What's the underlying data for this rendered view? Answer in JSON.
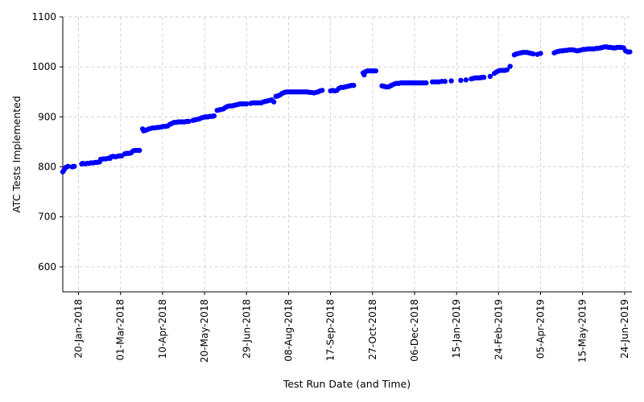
{
  "chart_data": {
    "type": "scatter",
    "xlabel": "Test Run Date (and Time)",
    "ylabel": "ATC Tests Implemented",
    "xlim": [
      "2018-01-05",
      "2019-07-01"
    ],
    "ylim": [
      550,
      1100
    ],
    "y_ticks": [
      600,
      700,
      800,
      900,
      1000,
      1100
    ],
    "x_ticks": [
      "20-Jan-2018",
      "01-Mar-2018",
      "10-Apr-2018",
      "20-May-2018",
      "29-Jun-2018",
      "08-Aug-2018",
      "17-Sep-2018",
      "27-Oct-2018",
      "06-Dec-2018",
      "15-Jan-2019",
      "24-Feb-2019",
      "05-Apr-2019",
      "15-May-2019",
      "24-Jun-2019"
    ],
    "grid": true,
    "marker_color": "#0000ff",
    "series": [
      {
        "points": [
          [
            "2018-01-05",
            790
          ],
          [
            "2018-01-06",
            793
          ],
          [
            "2018-01-07",
            797
          ],
          [
            "2018-01-08",
            799
          ],
          [
            "2018-01-09",
            800
          ],
          [
            "2018-01-10",
            801
          ],
          [
            "2018-01-14",
            800
          ],
          [
            "2018-01-15",
            801
          ],
          [
            "2018-01-16",
            801
          ],
          [
            "2018-01-23",
            806
          ],
          [
            "2018-01-24",
            807
          ],
          [
            "2018-01-26",
            806
          ],
          [
            "2018-01-28",
            807
          ],
          [
            "2018-01-30",
            807
          ],
          [
            "2018-02-01",
            808
          ],
          [
            "2018-02-03",
            808
          ],
          [
            "2018-02-05",
            809
          ],
          [
            "2018-02-07",
            809
          ],
          [
            "2018-02-09",
            810
          ],
          [
            "2018-02-10",
            815
          ],
          [
            "2018-02-11",
            815
          ],
          [
            "2018-02-13",
            816
          ],
          [
            "2018-02-15",
            816
          ],
          [
            "2018-02-17",
            817
          ],
          [
            "2018-02-19",
            817
          ],
          [
            "2018-02-20",
            820
          ],
          [
            "2018-02-22",
            821
          ],
          [
            "2018-02-24",
            820
          ],
          [
            "2018-02-26",
            821
          ],
          [
            "2018-02-28",
            822
          ],
          [
            "2018-03-02",
            822
          ],
          [
            "2018-03-05",
            826
          ],
          [
            "2018-03-07",
            827
          ],
          [
            "2018-03-09",
            827
          ],
          [
            "2018-03-11",
            828
          ],
          [
            "2018-03-13",
            832
          ],
          [
            "2018-03-15",
            833
          ],
          [
            "2018-03-17",
            833
          ],
          [
            "2018-03-19",
            833
          ],
          [
            "2018-03-22",
            876
          ],
          [
            "2018-03-23",
            872
          ],
          [
            "2018-03-24",
            873
          ],
          [
            "2018-03-26",
            874
          ],
          [
            "2018-03-28",
            876
          ],
          [
            "2018-03-30",
            877
          ],
          [
            "2018-04-01",
            878
          ],
          [
            "2018-04-03",
            878
          ],
          [
            "2018-04-05",
            879
          ],
          [
            "2018-04-07",
            879
          ],
          [
            "2018-04-09",
            880
          ],
          [
            "2018-04-11",
            881
          ],
          [
            "2018-04-13",
            881
          ],
          [
            "2018-04-15",
            882
          ],
          [
            "2018-04-17",
            885
          ],
          [
            "2018-04-19",
            887
          ],
          [
            "2018-04-21",
            889
          ],
          [
            "2018-04-23",
            889
          ],
          [
            "2018-04-25",
            890
          ],
          [
            "2018-04-27",
            890
          ],
          [
            "2018-04-29",
            890
          ],
          [
            "2018-05-01",
            890
          ],
          [
            "2018-05-03",
            891
          ],
          [
            "2018-05-05",
            891
          ],
          [
            "2018-05-09",
            893
          ],
          [
            "2018-05-11",
            894
          ],
          [
            "2018-05-13",
            895
          ],
          [
            "2018-05-15",
            896
          ],
          [
            "2018-05-17",
            898
          ],
          [
            "2018-05-19",
            899
          ],
          [
            "2018-05-21",
            900
          ],
          [
            "2018-05-23",
            900
          ],
          [
            "2018-05-25",
            901
          ],
          [
            "2018-05-27",
            901
          ],
          [
            "2018-05-29",
            902
          ],
          [
            "2018-06-01",
            913
          ],
          [
            "2018-06-03",
            914
          ],
          [
            "2018-06-05",
            915
          ],
          [
            "2018-06-07",
            916
          ],
          [
            "2018-06-09",
            919
          ],
          [
            "2018-06-11",
            921
          ],
          [
            "2018-06-13",
            922
          ],
          [
            "2018-06-15",
            922
          ],
          [
            "2018-06-17",
            923
          ],
          [
            "2018-06-19",
            924
          ],
          [
            "2018-06-21",
            925
          ],
          [
            "2018-06-23",
            926
          ],
          [
            "2018-06-25",
            926
          ],
          [
            "2018-06-27",
            926
          ],
          [
            "2018-06-29",
            926
          ],
          [
            "2018-07-03",
            927
          ],
          [
            "2018-07-05",
            928
          ],
          [
            "2018-07-07",
            928
          ],
          [
            "2018-07-09",
            928
          ],
          [
            "2018-07-11",
            928
          ],
          [
            "2018-07-13",
            928
          ],
          [
            "2018-07-15",
            930
          ],
          [
            "2018-07-17",
            931
          ],
          [
            "2018-07-19",
            932
          ],
          [
            "2018-07-21",
            933
          ],
          [
            "2018-07-23",
            934
          ],
          [
            "2018-07-25",
            930
          ],
          [
            "2018-07-27",
            941
          ],
          [
            "2018-07-29",
            942
          ],
          [
            "2018-07-31",
            944
          ],
          [
            "2018-08-02",
            947
          ],
          [
            "2018-08-04",
            949
          ],
          [
            "2018-08-06",
            950
          ],
          [
            "2018-08-08",
            950
          ],
          [
            "2018-08-10",
            950
          ],
          [
            "2018-08-12",
            950
          ],
          [
            "2018-08-14",
            950
          ],
          [
            "2018-08-16",
            950
          ],
          [
            "2018-08-18",
            950
          ],
          [
            "2018-08-20",
            950
          ],
          [
            "2018-08-22",
            950
          ],
          [
            "2018-08-24",
            950
          ],
          [
            "2018-08-26",
            950
          ],
          [
            "2018-08-28",
            949
          ],
          [
            "2018-08-30",
            949
          ],
          [
            "2018-09-01",
            948
          ],
          [
            "2018-09-03",
            949
          ],
          [
            "2018-09-05",
            950
          ],
          [
            "2018-09-07",
            952
          ],
          [
            "2018-09-09",
            953
          ],
          [
            "2018-09-17",
            952
          ],
          [
            "2018-09-19",
            953
          ],
          [
            "2018-09-21",
            952
          ],
          [
            "2018-09-23",
            953
          ],
          [
            "2018-09-25",
            957
          ],
          [
            "2018-09-27",
            959
          ],
          [
            "2018-09-29",
            959
          ],
          [
            "2018-10-01",
            960
          ],
          [
            "2018-10-03",
            961
          ],
          [
            "2018-10-05",
            962
          ],
          [
            "2018-10-07",
            963
          ],
          [
            "2018-10-09",
            963
          ],
          [
            "2018-10-18",
            988
          ],
          [
            "2018-10-19",
            984
          ],
          [
            "2018-10-20",
            990
          ],
          [
            "2018-10-22",
            992
          ],
          [
            "2018-10-24",
            992
          ],
          [
            "2018-10-26",
            992
          ],
          [
            "2018-10-28",
            992
          ],
          [
            "2018-10-30",
            992
          ],
          [
            "2018-11-05",
            962
          ],
          [
            "2018-11-07",
            961
          ],
          [
            "2018-11-09",
            960
          ],
          [
            "2018-11-11",
            960
          ],
          [
            "2018-11-13",
            962
          ],
          [
            "2018-11-15",
            964
          ],
          [
            "2018-11-17",
            966
          ],
          [
            "2018-11-19",
            967
          ],
          [
            "2018-11-21",
            967
          ],
          [
            "2018-11-23",
            968
          ],
          [
            "2018-11-25",
            968
          ],
          [
            "2018-11-27",
            968
          ],
          [
            "2018-11-29",
            968
          ],
          [
            "2018-12-01",
            968
          ],
          [
            "2018-12-03",
            968
          ],
          [
            "2018-12-05",
            968
          ],
          [
            "2018-12-07",
            968
          ],
          [
            "2018-12-09",
            968
          ],
          [
            "2018-12-11",
            968
          ],
          [
            "2018-12-13",
            968
          ],
          [
            "2018-12-15",
            968
          ],
          [
            "2018-12-17",
            968
          ],
          [
            "2018-12-23",
            970
          ],
          [
            "2018-12-26",
            970
          ],
          [
            "2018-12-29",
            970
          ],
          [
            "2019-01-01",
            971
          ],
          [
            "2019-01-04",
            971
          ],
          [
            "2019-01-10",
            972
          ],
          [
            "2019-01-19",
            973
          ],
          [
            "2019-01-24",
            974
          ],
          [
            "2019-01-29",
            976
          ],
          [
            "2019-01-31",
            977
          ],
          [
            "2019-02-02",
            978
          ],
          [
            "2019-02-04",
            978
          ],
          [
            "2019-02-06",
            978
          ],
          [
            "2019-02-08",
            979
          ],
          [
            "2019-02-10",
            979
          ],
          [
            "2019-02-16",
            981
          ],
          [
            "2019-02-20",
            987
          ],
          [
            "2019-02-22",
            990
          ],
          [
            "2019-02-24",
            992
          ],
          [
            "2019-02-26",
            993
          ],
          [
            "2019-02-28",
            993
          ],
          [
            "2019-03-02",
            993
          ],
          [
            "2019-03-04",
            994
          ],
          [
            "2019-03-07",
            1001
          ],
          [
            "2019-03-11",
            1024
          ],
          [
            "2019-03-13",
            1026
          ],
          [
            "2019-03-15",
            1027
          ],
          [
            "2019-03-17",
            1028
          ],
          [
            "2019-03-19",
            1029
          ],
          [
            "2019-03-21",
            1029
          ],
          [
            "2019-03-23",
            1029
          ],
          [
            "2019-03-25",
            1028
          ],
          [
            "2019-03-27",
            1027
          ],
          [
            "2019-03-29",
            1026
          ],
          [
            "2019-04-02",
            1025
          ],
          [
            "2019-04-05",
            1027
          ],
          [
            "2019-04-18",
            1028
          ],
          [
            "2019-04-20",
            1030
          ],
          [
            "2019-04-22",
            1031
          ],
          [
            "2019-04-24",
            1032
          ],
          [
            "2019-04-26",
            1032
          ],
          [
            "2019-04-28",
            1033
          ],
          [
            "2019-04-30",
            1033
          ],
          [
            "2019-05-02",
            1034
          ],
          [
            "2019-05-04",
            1034
          ],
          [
            "2019-05-06",
            1034
          ],
          [
            "2019-05-08",
            1033
          ],
          [
            "2019-05-10",
            1032
          ],
          [
            "2019-05-12",
            1033
          ],
          [
            "2019-05-14",
            1034
          ],
          [
            "2019-05-16",
            1035
          ],
          [
            "2019-05-18",
            1035
          ],
          [
            "2019-05-20",
            1036
          ],
          [
            "2019-05-22",
            1036
          ],
          [
            "2019-05-24",
            1036
          ],
          [
            "2019-05-26",
            1036
          ],
          [
            "2019-05-28",
            1037
          ],
          [
            "2019-05-30",
            1037
          ],
          [
            "2019-06-01",
            1038
          ],
          [
            "2019-06-03",
            1039
          ],
          [
            "2019-06-05",
            1040
          ],
          [
            "2019-06-07",
            1040
          ],
          [
            "2019-06-09",
            1039
          ],
          [
            "2019-06-11",
            1039
          ],
          [
            "2019-06-13",
            1038
          ],
          [
            "2019-06-15",
            1038
          ],
          [
            "2019-06-17",
            1039
          ],
          [
            "2019-06-19",
            1039
          ],
          [
            "2019-06-21",
            1039
          ],
          [
            "2019-06-23",
            1038
          ],
          [
            "2019-06-25",
            1032
          ],
          [
            "2019-06-27",
            1030
          ],
          [
            "2019-06-29",
            1030
          ]
        ]
      }
    ]
  }
}
